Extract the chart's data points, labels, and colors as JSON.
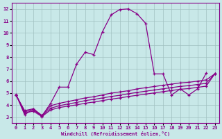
{
  "background_color": "#c8e8e8",
  "line_color": "#880088",
  "grid_color": "#a0c0c0",
  "xlabel": "Windchill (Refroidissement éolien,°C)",
  "xlim": [
    -0.5,
    23.5
  ],
  "ylim": [
    2.5,
    12.5
  ],
  "xticks": [
    0,
    1,
    2,
    3,
    4,
    5,
    6,
    7,
    8,
    9,
    10,
    11,
    12,
    13,
    14,
    15,
    16,
    17,
    18,
    19,
    20,
    21,
    22,
    23
  ],
  "yticks": [
    3,
    4,
    5,
    6,
    7,
    8,
    9,
    10,
    11,
    12
  ],
  "main_x": [
    0,
    1,
    2,
    3,
    4,
    5,
    6,
    7,
    8,
    9,
    10,
    11,
    12,
    13,
    14,
    15,
    16,
    17,
    18,
    19,
    20,
    21,
    22
  ],
  "main_y": [
    4.9,
    3.2,
    3.7,
    3.1,
    4.15,
    5.5,
    5.5,
    7.4,
    8.4,
    8.2,
    10.1,
    11.5,
    11.95,
    12.0,
    11.6,
    10.8,
    6.6,
    6.6,
    4.85,
    5.35,
    4.85,
    5.35,
    6.65
  ],
  "line2_x": [
    0,
    1,
    2,
    3,
    4,
    5,
    6,
    7,
    8,
    9,
    10,
    11,
    12,
    13,
    14,
    15,
    16,
    17,
    18,
    19,
    20,
    21,
    22,
    23
  ],
  "line2_y": [
    4.85,
    3.55,
    3.7,
    3.15,
    3.95,
    4.15,
    4.3,
    4.45,
    4.6,
    4.7,
    4.85,
    5.0,
    5.1,
    5.2,
    5.35,
    5.45,
    5.55,
    5.65,
    5.75,
    5.85,
    5.9,
    6.0,
    6.1,
    6.6
  ],
  "line3_x": [
    0,
    1,
    2,
    3,
    4,
    5,
    6,
    7,
    8,
    9,
    10,
    11,
    12,
    13,
    14,
    15,
    16,
    17,
    18,
    19,
    20,
    21,
    22,
    23
  ],
  "line3_y": [
    4.85,
    3.45,
    3.6,
    3.1,
    3.75,
    3.95,
    4.1,
    4.22,
    4.38,
    4.48,
    4.6,
    4.72,
    4.82,
    4.95,
    5.06,
    5.16,
    5.26,
    5.36,
    5.46,
    5.56,
    5.62,
    5.72,
    5.82,
    6.6
  ],
  "line4_x": [
    0,
    1,
    2,
    3,
    4,
    5,
    6,
    7,
    8,
    9,
    10,
    11,
    12,
    13,
    14,
    15,
    16,
    17,
    18,
    19,
    20,
    21,
    22,
    23
  ],
  "line4_y": [
    4.85,
    3.35,
    3.5,
    3.05,
    3.6,
    3.8,
    3.92,
    4.02,
    4.16,
    4.26,
    4.38,
    4.5,
    4.6,
    4.72,
    4.82,
    4.92,
    5.02,
    5.12,
    5.22,
    5.32,
    5.38,
    5.48,
    5.58,
    6.6
  ],
  "linewidth": 0.9,
  "markersize": 3.5
}
